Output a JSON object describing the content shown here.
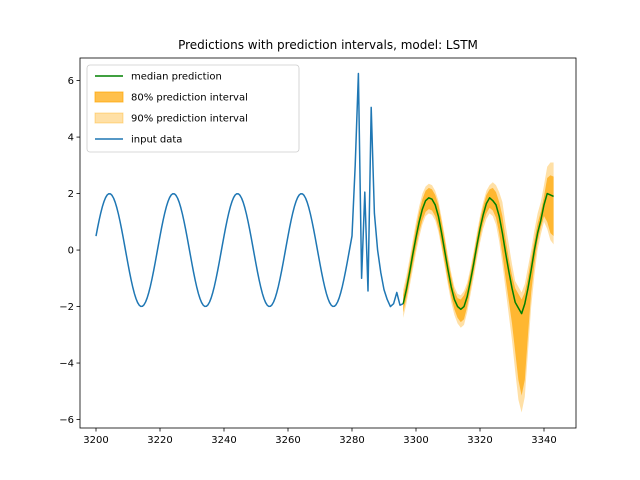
{
  "colors": {
    "input": "#1f77b4",
    "median": "#008000",
    "interval80": "#ffa500",
    "interval90": "#ffa500"
  },
  "chart_data": {
    "type": "line",
    "title": "Predictions with prediction intervals, model: LSTM",
    "xlabel": "",
    "ylabel": "",
    "xlim": [
      3195,
      3350
    ],
    "ylim": [
      -6.3,
      6.8
    ],
    "xticks": [
      3200,
      3220,
      3240,
      3260,
      3280,
      3300,
      3320,
      3340
    ],
    "yticks": [
      -6,
      -4,
      -2,
      0,
      2,
      4,
      6
    ],
    "grid": false,
    "legend": {
      "placement": "top-left",
      "entries": [
        "median prediction",
        "80% prediction interval",
        "90% prediction interval",
        "input data"
      ]
    },
    "input": {
      "name": "input data",
      "x_start": 3200,
      "x_end": 3281,
      "amplitude": 2,
      "period": 20,
      "phase": 0.25,
      "spikes": [
        [
          3280,
          0.5
        ],
        [
          3281,
          3.0
        ],
        [
          3282,
          6.25
        ],
        [
          3283,
          -1.0
        ],
        [
          3284,
          2.05
        ],
        [
          3285,
          -1.45
        ],
        [
          3286,
          5.05
        ],
        [
          3287,
          1.3
        ],
        [
          3288,
          0.0
        ],
        [
          3289,
          -0.8
        ],
        [
          3290,
          -1.4
        ],
        [
          3291,
          -1.75
        ],
        [
          3292,
          -2.0
        ],
        [
          3293,
          -1.9
        ],
        [
          3294,
          -1.5
        ],
        [
          3295,
          -1.95
        ],
        [
          3296,
          -1.9
        ]
      ]
    },
    "forecast": {
      "x": [
        3296,
        3297,
        3298,
        3299,
        3300,
        3301,
        3302,
        3303,
        3304,
        3305,
        3306,
        3307,
        3308,
        3309,
        3310,
        3311,
        3312,
        3313,
        3314,
        3315,
        3316,
        3317,
        3318,
        3319,
        3320,
        3321,
        3322,
        3323,
        3324,
        3325,
        3326,
        3327,
        3328,
        3329,
        3330,
        3331,
        3332,
        3333,
        3334,
        3335,
        3336,
        3337,
        3338,
        3339,
        3340,
        3341,
        3342,
        3343
      ],
      "median": [
        -1.9,
        -1.4,
        -0.8,
        -0.15,
        0.45,
        1.0,
        1.45,
        1.75,
        1.85,
        1.8,
        1.6,
        1.2,
        0.6,
        -0.05,
        -0.7,
        -1.3,
        -1.75,
        -2.0,
        -2.1,
        -2.0,
        -1.65,
        -1.1,
        -0.5,
        0.15,
        0.75,
        1.25,
        1.65,
        1.85,
        1.75,
        1.6,
        1.2,
        0.6,
        -0.1,
        -0.75,
        -1.35,
        -1.85,
        -2.05,
        -2.25,
        -1.9,
        -1.35,
        -0.7,
        0.0,
        0.6,
        1.05,
        1.6,
        2.0,
        1.95,
        1.9
      ],
      "p80_low": [
        -2.2,
        -1.7,
        -1.1,
        -0.5,
        0.1,
        0.65,
        1.05,
        1.35,
        1.45,
        1.4,
        1.2,
        0.8,
        0.2,
        -0.45,
        -1.1,
        -1.65,
        -2.1,
        -2.4,
        -2.55,
        -2.45,
        -2.0,
        -1.4,
        -0.8,
        -0.15,
        0.45,
        0.95,
        1.3,
        1.5,
        1.4,
        1.15,
        0.6,
        -0.15,
        -1.0,
        -1.8,
        -2.6,
        -3.6,
        -4.6,
        -5.15,
        -4.6,
        -3.0,
        -1.5,
        -0.5,
        0.3,
        0.8,
        1.2,
        1.0,
        0.6,
        0.5
      ],
      "p80_high": [
        -1.6,
        -1.1,
        -0.5,
        0.15,
        0.8,
        1.35,
        1.8,
        2.1,
        2.2,
        2.15,
        1.95,
        1.6,
        1.0,
        0.35,
        -0.35,
        -0.95,
        -1.45,
        -1.7,
        -1.75,
        -1.6,
        -1.3,
        -0.8,
        -0.2,
        0.45,
        1.05,
        1.55,
        1.95,
        2.15,
        2.2,
        2.05,
        1.7,
        1.2,
        0.4,
        -0.3,
        -0.9,
        -1.35,
        -1.55,
        -1.75,
        -1.5,
        -0.95,
        -0.3,
        0.35,
        0.95,
        1.35,
        1.9,
        2.55,
        2.65,
        2.6
      ],
      "p90_low": [
        -2.4,
        -1.9,
        -1.3,
        -0.7,
        -0.1,
        0.45,
        0.9,
        1.2,
        1.3,
        1.25,
        1.05,
        0.65,
        0.05,
        -0.6,
        -1.25,
        -1.85,
        -2.3,
        -2.6,
        -2.75,
        -2.65,
        -2.2,
        -1.6,
        -1.0,
        -0.35,
        0.25,
        0.75,
        1.1,
        1.3,
        1.2,
        0.9,
        0.3,
        -0.5,
        -1.4,
        -2.3,
        -3.2,
        -4.3,
        -5.3,
        -5.75,
        -5.2,
        -3.6,
        -2.0,
        -0.9,
        0.0,
        0.55,
        1.0,
        0.75,
        0.35,
        0.2
      ],
      "p90_high": [
        -1.4,
        -0.9,
        -0.3,
        0.35,
        1.0,
        1.55,
        2.0,
        2.25,
        2.35,
        2.3,
        2.1,
        1.75,
        1.15,
        0.5,
        -0.2,
        -0.8,
        -1.3,
        -1.55,
        -1.6,
        -1.45,
        -1.15,
        -0.65,
        -0.05,
        0.6,
        1.2,
        1.7,
        2.1,
        2.3,
        2.4,
        2.3,
        2.05,
        1.7,
        0.9,
        0.2,
        -0.5,
        -1.1,
        -1.3,
        -1.5,
        -1.2,
        -0.6,
        0.0,
        0.7,
        1.3,
        1.7,
        2.3,
        2.95,
        3.1,
        3.1
      ]
    }
  }
}
